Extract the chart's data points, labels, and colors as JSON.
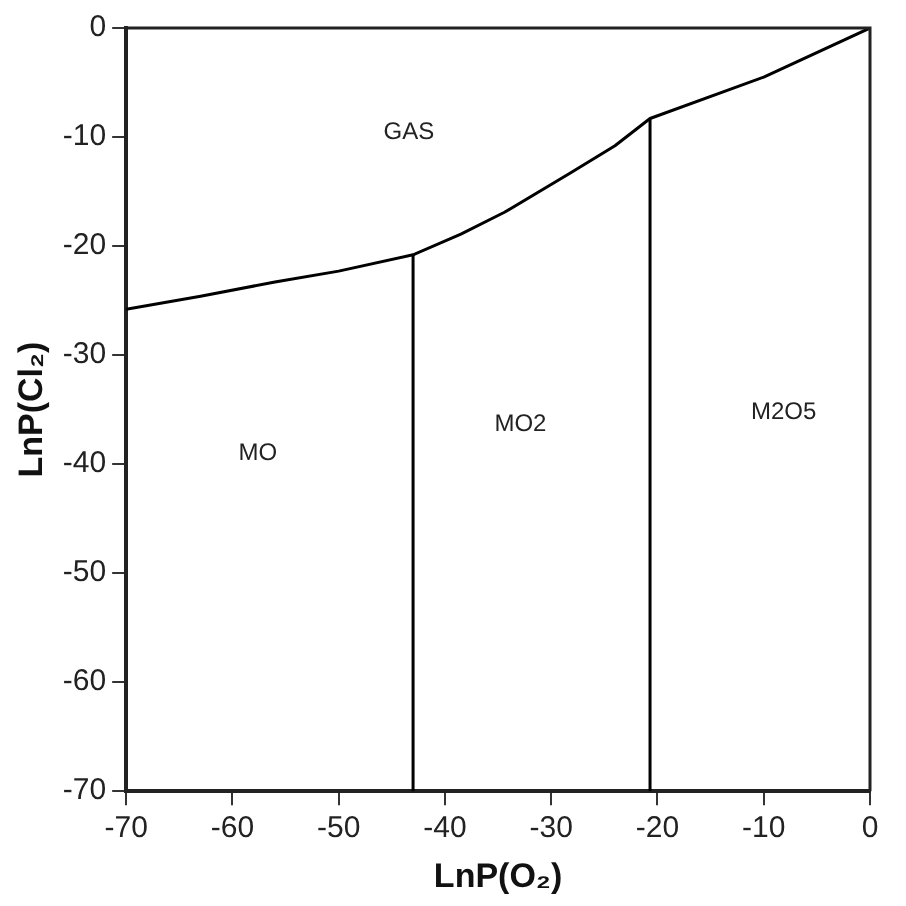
{
  "chart_data": {
    "type": "line",
    "xlabel": "LnP(O₂)",
    "ylabel": "LnP(Cl₂)",
    "xlim": [
      -70,
      0
    ],
    "xticks": [
      -70,
      -60,
      -50,
      -40,
      -30,
      -20,
      -10,
      0
    ],
    "ylim": [
      -70,
      0
    ],
    "yticks": [
      -70,
      -60,
      -50,
      -40,
      -30,
      -20,
      -10,
      0
    ],
    "grid": false,
    "legend": false,
    "marker": "none",
    "line_style": "solid",
    "series": [
      {
        "color": "#000000",
        "x": [
          -70,
          -63,
          -56,
          -50,
          -43,
          -38.5,
          -34.4,
          -28.2,
          -24,
          -20.7,
          -10,
          0
        ],
        "values": [
          -25.8,
          -24.6,
          -23.3,
          -22.3,
          -20.8,
          -18.9,
          -16.9,
          -13.3,
          -10.8,
          -8.3,
          -4.5,
          0
        ]
      },
      {
        "color": "#000000",
        "x": [
          -43,
          -43
        ],
        "values": [
          -70,
          -20.8
        ]
      },
      {
        "color": "#000000",
        "x": [
          -20.7,
          -20.7
        ],
        "values": [
          -70,
          -8.3
        ]
      }
    ],
    "annotations": [
      "GAS",
      "MO",
      "MO2",
      "M2O5"
    ]
  }
}
